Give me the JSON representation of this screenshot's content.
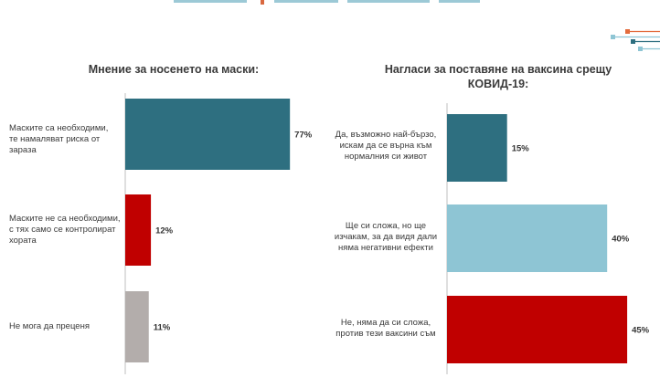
{
  "colors": {
    "teal": "#2e6f80",
    "red": "#c00000",
    "gray": "#b3adab",
    "lightblue": "#8ec5d4",
    "axis": "#bfbfbf"
  },
  "chart_data": [
    {
      "type": "bar",
      "orientation": "horizontal",
      "title": "Мнение за носенето на маски:",
      "categories": [
        "Маските са необходими, те намаляват риска от зараза",
        "Маските не са необходими, с тях само се контролират хората",
        "Не мога да преценя"
      ],
      "values": [
        77,
        12,
        11
      ],
      "value_labels": [
        "77%",
        "12%",
        "11%"
      ],
      "bar_colors": [
        "#2e6f80",
        "#c00000",
        "#b3adab"
      ],
      "xlim": [
        0,
        100
      ],
      "grid": false
    },
    {
      "type": "bar",
      "orientation": "horizontal",
      "title": "Нагласи за поставяне на ваксина срещу КОВИД-19:",
      "categories": [
        "Да, възможно най-бързо, искам да се върна към нормалния си живот",
        "Ще си сложа, но ще изчакам, за да видя дали няма негативни ефекти",
        "Не, няма да си сложа, против тези ваксини съм"
      ],
      "values": [
        15,
        40,
        45
      ],
      "value_labels": [
        "15%",
        "40%",
        "45%"
      ],
      "bar_colors": [
        "#2e6f80",
        "#8ec5d4",
        "#c00000"
      ],
      "xlim": [
        0,
        100
      ],
      "grid": false
    }
  ]
}
